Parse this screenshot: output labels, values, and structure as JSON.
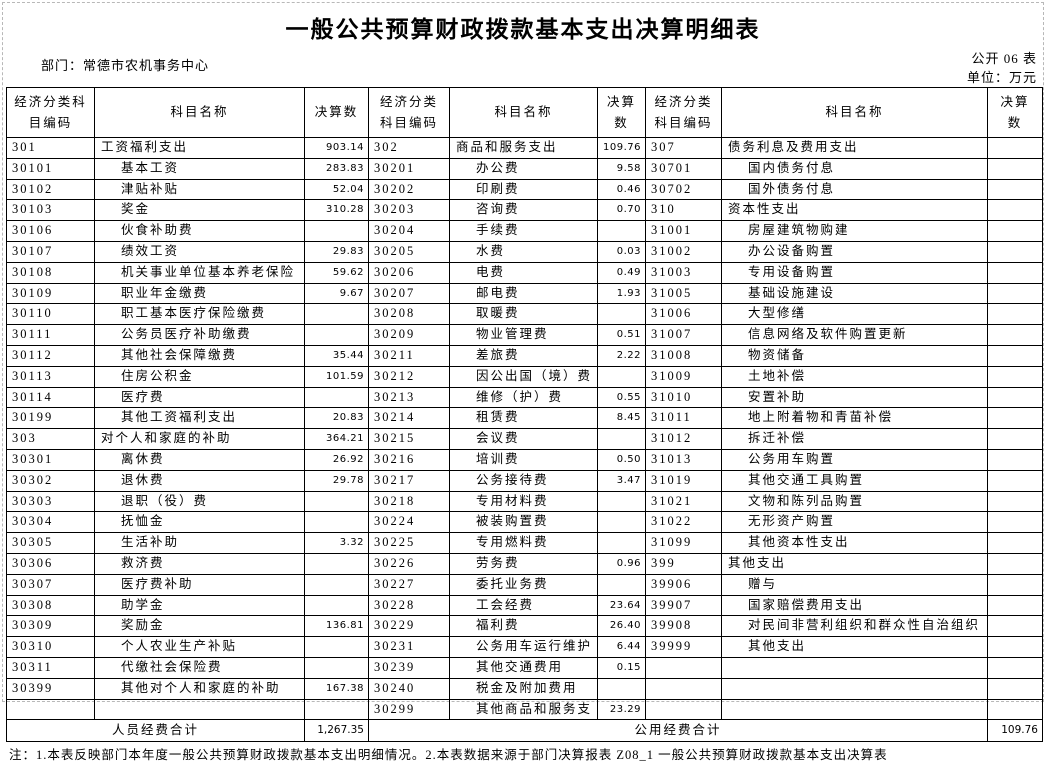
{
  "page": {
    "title": "一般公共预算财政拨款基本支出决算明细表",
    "department_label": "部门：",
    "department": "常德市农机事务中心",
    "sheet_no": "公开 06 表",
    "unit": "单位：万元"
  },
  "table": {
    "column_headers": {
      "code": "经济分类科目编码",
      "name": "科目名称",
      "amount": "决算数"
    },
    "row_count": 28,
    "groups": [
      {
        "rows": [
          {
            "code": "301",
            "name": "工资福利支出",
            "amount": "903.14",
            "level": 0
          },
          {
            "code": "30101",
            "name": "基本工资",
            "amount": "283.83",
            "level": 1
          },
          {
            "code": "30102",
            "name": "津贴补贴",
            "amount": "52.04",
            "level": 1
          },
          {
            "code": "30103",
            "name": "奖金",
            "amount": "310.28",
            "level": 1
          },
          {
            "code": "30106",
            "name": "伙食补助费",
            "amount": "",
            "level": 1
          },
          {
            "code": "30107",
            "name": "绩效工资",
            "amount": "29.83",
            "level": 1
          },
          {
            "code": "30108",
            "name": "机关事业单位基本养老保险",
            "amount": "59.62",
            "level": 1
          },
          {
            "code": "30109",
            "name": "职业年金缴费",
            "amount": "9.67",
            "level": 1
          },
          {
            "code": "30110",
            "name": "职工基本医疗保险缴费",
            "amount": "",
            "level": 1
          },
          {
            "code": "30111",
            "name": "公务员医疗补助缴费",
            "amount": "",
            "level": 1
          },
          {
            "code": "30112",
            "name": "其他社会保障缴费",
            "amount": "35.44",
            "level": 1
          },
          {
            "code": "30113",
            "name": "住房公积金",
            "amount": "101.59",
            "level": 1
          },
          {
            "code": "30114",
            "name": "医疗费",
            "amount": "",
            "level": 1
          },
          {
            "code": "30199",
            "name": "其他工资福利支出",
            "amount": "20.83",
            "level": 1
          },
          {
            "code": "303",
            "name": "对个人和家庭的补助",
            "amount": "364.21",
            "level": 0
          },
          {
            "code": "30301",
            "name": "离休费",
            "amount": "26.92",
            "level": 1
          },
          {
            "code": "30302",
            "name": "退休费",
            "amount": "29.78",
            "level": 1
          },
          {
            "code": "30303",
            "name": "退职（役）费",
            "amount": "",
            "level": 1
          },
          {
            "code": "30304",
            "name": "抚恤金",
            "amount": "",
            "level": 1
          },
          {
            "code": "30305",
            "name": "生活补助",
            "amount": "3.32",
            "level": 1
          },
          {
            "code": "30306",
            "name": "救济费",
            "amount": "",
            "level": 1
          },
          {
            "code": "30307",
            "name": "医疗费补助",
            "amount": "",
            "level": 1
          },
          {
            "code": "30308",
            "name": "助学金",
            "amount": "",
            "level": 1
          },
          {
            "code": "30309",
            "name": "奖励金",
            "amount": "136.81",
            "level": 1
          },
          {
            "code": "30310",
            "name": "个人农业生产补贴",
            "amount": "",
            "level": 1
          },
          {
            "code": "30311",
            "name": "代缴社会保险费",
            "amount": "",
            "level": 1
          },
          {
            "code": "30399",
            "name": "其他对个人和家庭的补助",
            "amount": "167.38",
            "level": 1
          }
        ]
      },
      {
        "rows": [
          {
            "code": "302",
            "name": "商品和服务支出",
            "amount": "109.76",
            "level": 0
          },
          {
            "code": "30201",
            "name": "办公费",
            "amount": "9.58",
            "level": 1
          },
          {
            "code": "30202",
            "name": "印刷费",
            "amount": "0.46",
            "level": 1
          },
          {
            "code": "30203",
            "name": "咨询费",
            "amount": "0.70",
            "level": 1
          },
          {
            "code": "30204",
            "name": "手续费",
            "amount": "",
            "level": 1
          },
          {
            "code": "30205",
            "name": "水费",
            "amount": "0.03",
            "level": 1
          },
          {
            "code": "30206",
            "name": "电费",
            "amount": "0.49",
            "level": 1
          },
          {
            "code": "30207",
            "name": "邮电费",
            "amount": "1.93",
            "level": 1
          },
          {
            "code": "30208",
            "name": "取暖费",
            "amount": "",
            "level": 1
          },
          {
            "code": "30209",
            "name": "物业管理费",
            "amount": "0.51",
            "level": 1
          },
          {
            "code": "30211",
            "name": "差旅费",
            "amount": "2.22",
            "level": 1
          },
          {
            "code": "30212",
            "name": "因公出国（境）费",
            "amount": "",
            "level": 1
          },
          {
            "code": "30213",
            "name": "维修（护）费",
            "amount": "0.55",
            "level": 1
          },
          {
            "code": "30214",
            "name": "租赁费",
            "amount": "8.45",
            "level": 1
          },
          {
            "code": "30215",
            "name": "会议费",
            "amount": "",
            "level": 1
          },
          {
            "code": "30216",
            "name": "培训费",
            "amount": "0.50",
            "level": 1
          },
          {
            "code": "30217",
            "name": "公务接待费",
            "amount": "3.47",
            "level": 1
          },
          {
            "code": "30218",
            "name": "专用材料费",
            "amount": "",
            "level": 1
          },
          {
            "code": "30224",
            "name": "被装购置费",
            "amount": "",
            "level": 1
          },
          {
            "code": "30225",
            "name": "专用燃料费",
            "amount": "",
            "level": 1
          },
          {
            "code": "30226",
            "name": "劳务费",
            "amount": "0.96",
            "level": 1
          },
          {
            "code": "30227",
            "name": "委托业务费",
            "amount": "",
            "level": 1
          },
          {
            "code": "30228",
            "name": "工会经费",
            "amount": "23.64",
            "level": 1
          },
          {
            "code": "30229",
            "name": "福利费",
            "amount": "26.40",
            "level": 1
          },
          {
            "code": "30231",
            "name": "公务用车运行维护",
            "amount": "6.44",
            "level": 1
          },
          {
            "code": "30239",
            "name": "其他交通费用",
            "amount": "0.15",
            "level": 1
          },
          {
            "code": "30240",
            "name": "税金及附加费用",
            "amount": "",
            "level": 1
          },
          {
            "code": "30299",
            "name": "其他商品和服务支",
            "amount": "23.29",
            "level": 1
          }
        ]
      },
      {
        "rows": [
          {
            "code": "307",
            "name": "债务利息及费用支出",
            "amount": "",
            "level": 0
          },
          {
            "code": "30701",
            "name": "国内债务付息",
            "amount": "",
            "level": 1
          },
          {
            "code": "30702",
            "name": "国外债务付息",
            "amount": "",
            "level": 1
          },
          {
            "code": "310",
            "name": "资本性支出",
            "amount": "",
            "level": 0
          },
          {
            "code": "31001",
            "name": "房屋建筑物购建",
            "amount": "",
            "level": 1
          },
          {
            "code": "31002",
            "name": "办公设备购置",
            "amount": "",
            "level": 1
          },
          {
            "code": "31003",
            "name": "专用设备购置",
            "amount": "",
            "level": 1
          },
          {
            "code": "31005",
            "name": "基础设施建设",
            "amount": "",
            "level": 1
          },
          {
            "code": "31006",
            "name": "大型修缮",
            "amount": "",
            "level": 1
          },
          {
            "code": "31007",
            "name": "信息网络及软件购置更新",
            "amount": "",
            "level": 1
          },
          {
            "code": "31008",
            "name": "物资储备",
            "amount": "",
            "level": 1
          },
          {
            "code": "31009",
            "name": "土地补偿",
            "amount": "",
            "level": 1
          },
          {
            "code": "31010",
            "name": "安置补助",
            "amount": "",
            "level": 1
          },
          {
            "code": "31011",
            "name": "地上附着物和青苗补偿",
            "amount": "",
            "level": 1
          },
          {
            "code": "31012",
            "name": "拆迁补偿",
            "amount": "",
            "level": 1
          },
          {
            "code": "31013",
            "name": "公务用车购置",
            "amount": "",
            "level": 1
          },
          {
            "code": "31019",
            "name": "其他交通工具购置",
            "amount": "",
            "level": 1
          },
          {
            "code": "31021",
            "name": "文物和陈列品购置",
            "amount": "",
            "level": 1
          },
          {
            "code": "31022",
            "name": "无形资产购置",
            "amount": "",
            "level": 1
          },
          {
            "code": "31099",
            "name": "其他资本性支出",
            "amount": "",
            "level": 1
          },
          {
            "code": "399",
            "name": "其他支出",
            "amount": "",
            "level": 0
          },
          {
            "code": "39906",
            "name": "赠与",
            "amount": "",
            "level": 1
          },
          {
            "code": "39907",
            "name": "国家赔偿费用支出",
            "amount": "",
            "level": 1
          },
          {
            "code": "39908",
            "name": "对民间非营利组织和群众性自治组织",
            "amount": "",
            "level": 1
          },
          {
            "code": "39999",
            "name": "其他支出",
            "amount": "",
            "level": 1
          }
        ]
      }
    ],
    "footer": {
      "personnel_label": "人员经费合计",
      "personnel_total": "1,267.35",
      "public_label": "公用经费合计",
      "public_total": "109.76"
    },
    "note": "注：1.本表反映部门本年度一般公共预算财政拨款基本支出明细情况。2.本表数据来源于部门决算报表 Z08_1 一般公共预算财政拨款基本支出决算表"
  }
}
